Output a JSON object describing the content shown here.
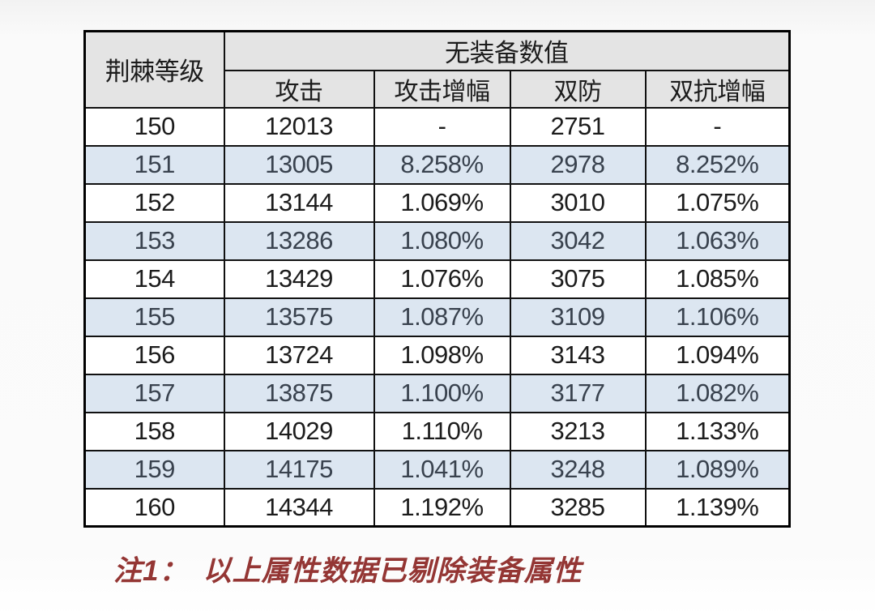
{
  "table": {
    "corner_header": "荆棘等级",
    "group_header": "无装备数值",
    "columns": [
      "攻击",
      "攻击增幅",
      "双防",
      "双抗增幅"
    ],
    "rows": [
      {
        "level": "150",
        "attack": "12013",
        "attack_growth": "-",
        "defense": "2751",
        "resist_growth": "-",
        "highlighted": false
      },
      {
        "level": "151",
        "attack": "13005",
        "attack_growth": "8.258%",
        "defense": "2978",
        "resist_growth": "8.252%",
        "highlighted": true
      },
      {
        "level": "152",
        "attack": "13144",
        "attack_growth": "1.069%",
        "defense": "3010",
        "resist_growth": "1.075%",
        "highlighted": false
      },
      {
        "level": "153",
        "attack": "13286",
        "attack_growth": "1.080%",
        "defense": "3042",
        "resist_growth": "1.063%",
        "highlighted": true
      },
      {
        "level": "154",
        "attack": "13429",
        "attack_growth": "1.076%",
        "defense": "3075",
        "resist_growth": "1.085%",
        "highlighted": false
      },
      {
        "level": "155",
        "attack": "13575",
        "attack_growth": "1.087%",
        "defense": "3109",
        "resist_growth": "1.106%",
        "highlighted": true
      },
      {
        "level": "156",
        "attack": "13724",
        "attack_growth": "1.098%",
        "defense": "3143",
        "resist_growth": "1.094%",
        "highlighted": false
      },
      {
        "level": "157",
        "attack": "13875",
        "attack_growth": "1.100%",
        "defense": "3177",
        "resist_growth": "1.082%",
        "highlighted": true
      },
      {
        "level": "158",
        "attack": "14029",
        "attack_growth": "1.110%",
        "defense": "3213",
        "resist_growth": "1.133%",
        "highlighted": false
      },
      {
        "level": "159",
        "attack": "14175",
        "attack_growth": "1.041%",
        "defense": "3248",
        "resist_growth": "1.089%",
        "highlighted": true
      },
      {
        "level": "160",
        "attack": "14344",
        "attack_growth": "1.192%",
        "defense": "3285",
        "resist_growth": "1.139%",
        "highlighted": false
      }
    ]
  },
  "note": {
    "prefix": "注1：",
    "text": "以上属性数据已剔除装备属性"
  },
  "colors": {
    "highlight_row_bg": "#dce6f1",
    "header_bg": "#e4e4e4",
    "border": "#000000",
    "note_text": "#943634"
  }
}
